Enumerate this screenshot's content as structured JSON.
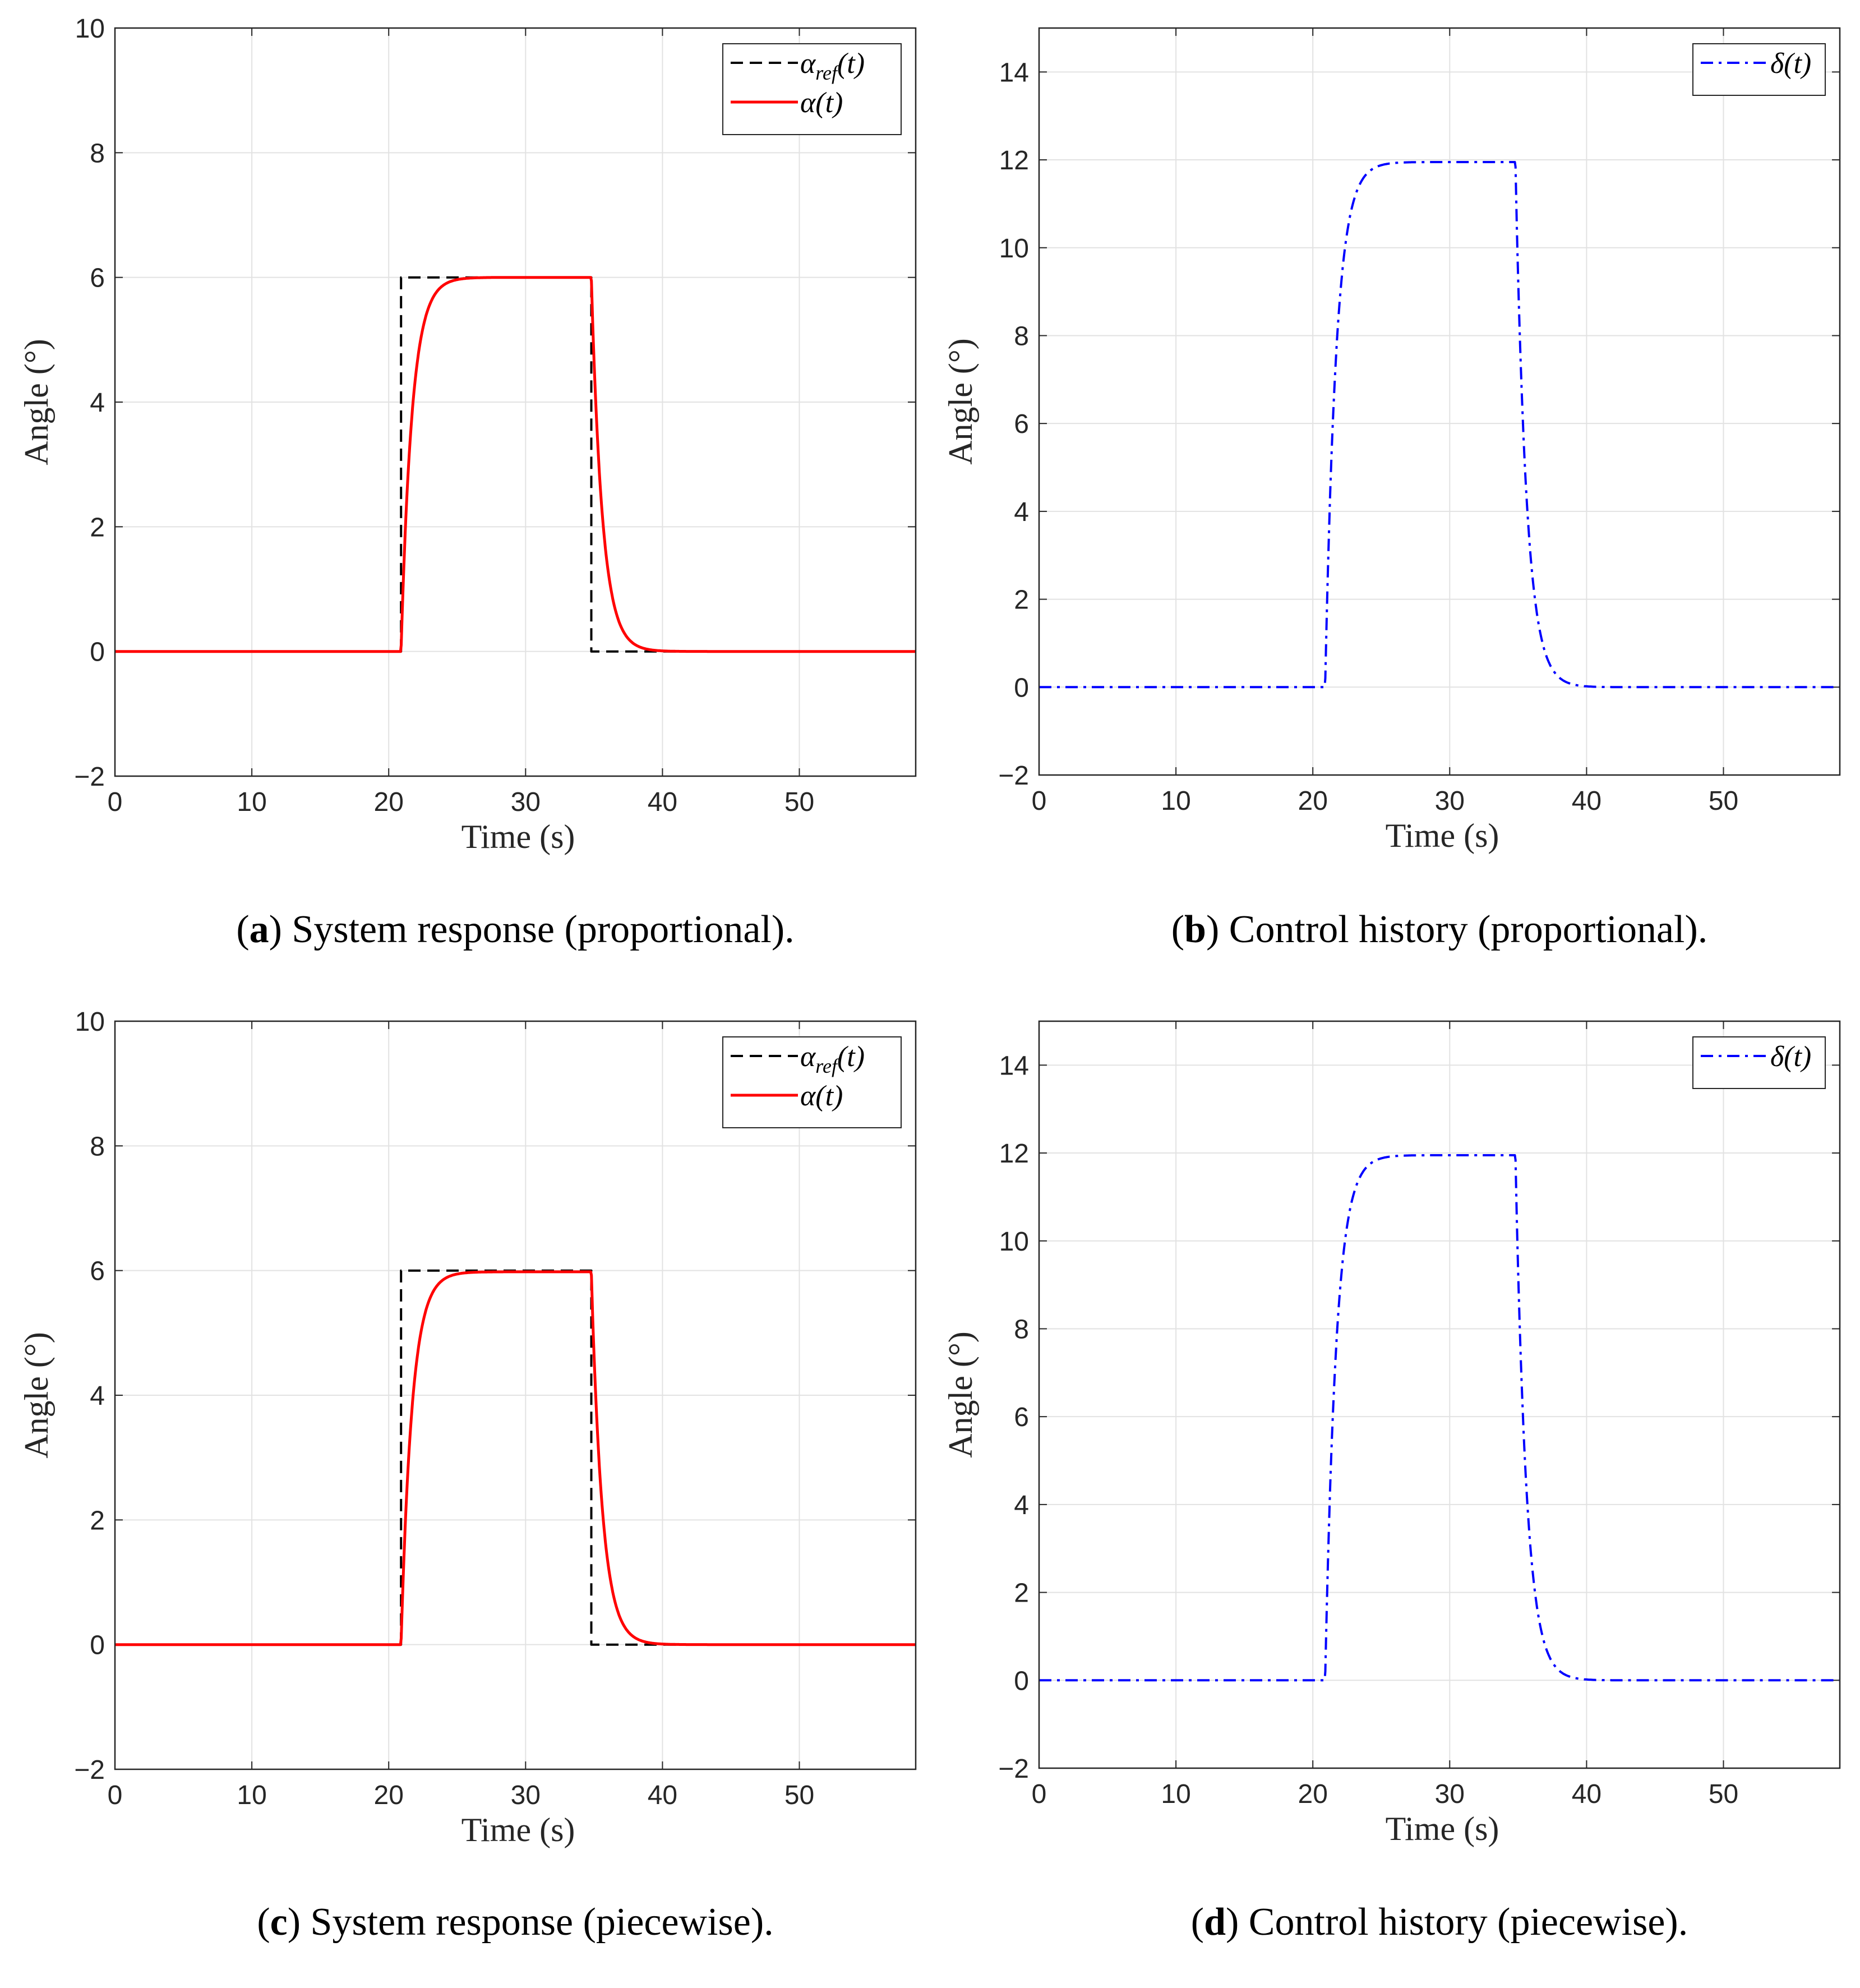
{
  "chart_data": [
    {
      "type": "line",
      "id": "a",
      "xlabel": "Time (s)",
      "ylabel": "Angle (°)",
      "xlim": [
        0,
        58.5
      ],
      "ylim": [
        -2,
        10
      ],
      "xticks": [
        0,
        10,
        20,
        30,
        40,
        50
      ],
      "yticks": [
        -2,
        0,
        2,
        4,
        6,
        8,
        10
      ],
      "grid": true,
      "legend_position": "top-right",
      "caption": {
        "letter": "a",
        "text": "System response (proportional)."
      },
      "series": [
        {
          "name": "α_ref(t)",
          "kind": "step",
          "color": "#000000",
          "style": "dashed",
          "x": [
            0,
            20.9,
            20.9,
            34.8,
            34.8,
            58.5
          ],
          "y": [
            0,
            0,
            6,
            6,
            0,
            0
          ]
        },
        {
          "name": "α(t)",
          "kind": "response",
          "color": "#ff0000",
          "style": "solid",
          "rise_start": 20.9,
          "fall_start": 34.8,
          "level": 6,
          "time_constant": 0.8,
          "t_end": 58.5
        }
      ]
    },
    {
      "type": "line",
      "id": "b",
      "xlabel": "Time (s)",
      "ylabel": "Angle (°)",
      "xlim": [
        0,
        58.5
      ],
      "ylim": [
        -2,
        15
      ],
      "xticks": [
        0,
        10,
        20,
        30,
        40,
        50
      ],
      "yticks": [
        -2,
        0,
        2,
        4,
        6,
        8,
        10,
        12,
        14
      ],
      "grid": true,
      "legend_position": "top-right",
      "caption": {
        "letter": "b",
        "text": "Control history (proportional)."
      },
      "series": [
        {
          "name": "δ(t)",
          "kind": "response",
          "color": "#0000ff",
          "style": "dashdot",
          "rise_start": 20.9,
          "fall_start": 34.8,
          "level": 11.95,
          "time_constant": 0.8,
          "t_end": 58.5
        }
      ]
    },
    {
      "type": "line",
      "id": "c",
      "xlabel": "Time (s)",
      "ylabel": "Angle (°)",
      "xlim": [
        0,
        58.5
      ],
      "ylim": [
        -2,
        10
      ],
      "xticks": [
        0,
        10,
        20,
        30,
        40,
        50
      ],
      "yticks": [
        -2,
        0,
        2,
        4,
        6,
        8,
        10
      ],
      "grid": true,
      "legend_position": "top-right",
      "caption": {
        "letter": "c",
        "text": "System response (piecewise)."
      },
      "series": [
        {
          "name": "α_ref(t)",
          "kind": "step",
          "color": "#000000",
          "style": "dashed",
          "x": [
            0,
            20.9,
            20.9,
            34.8,
            34.8,
            58.5
          ],
          "y": [
            0,
            0,
            6,
            6,
            0,
            0
          ]
        },
        {
          "name": "α(t)",
          "kind": "response",
          "color": "#ff0000",
          "style": "solid",
          "rise_start": 20.9,
          "fall_start": 34.8,
          "level": 5.98,
          "time_constant": 0.8,
          "t_end": 58.5
        }
      ]
    },
    {
      "type": "line",
      "id": "d",
      "xlabel": "Time (s)",
      "ylabel": "Angle (°)",
      "xlim": [
        0,
        58.5
      ],
      "ylim": [
        -2,
        15
      ],
      "xticks": [
        0,
        10,
        20,
        30,
        40,
        50
      ],
      "yticks": [
        -2,
        0,
        2,
        4,
        6,
        8,
        10,
        12,
        14
      ],
      "grid": true,
      "legend_position": "top-right",
      "caption": {
        "letter": "d",
        "text": "Control history (piecewise)."
      },
      "series": [
        {
          "name": "δ(t)",
          "kind": "response",
          "color": "#0000ff",
          "style": "dashdot",
          "rise_start": 20.9,
          "fall_start": 34.8,
          "level": 11.95,
          "time_constant": 0.8,
          "t_end": 58.5
        }
      ]
    }
  ]
}
